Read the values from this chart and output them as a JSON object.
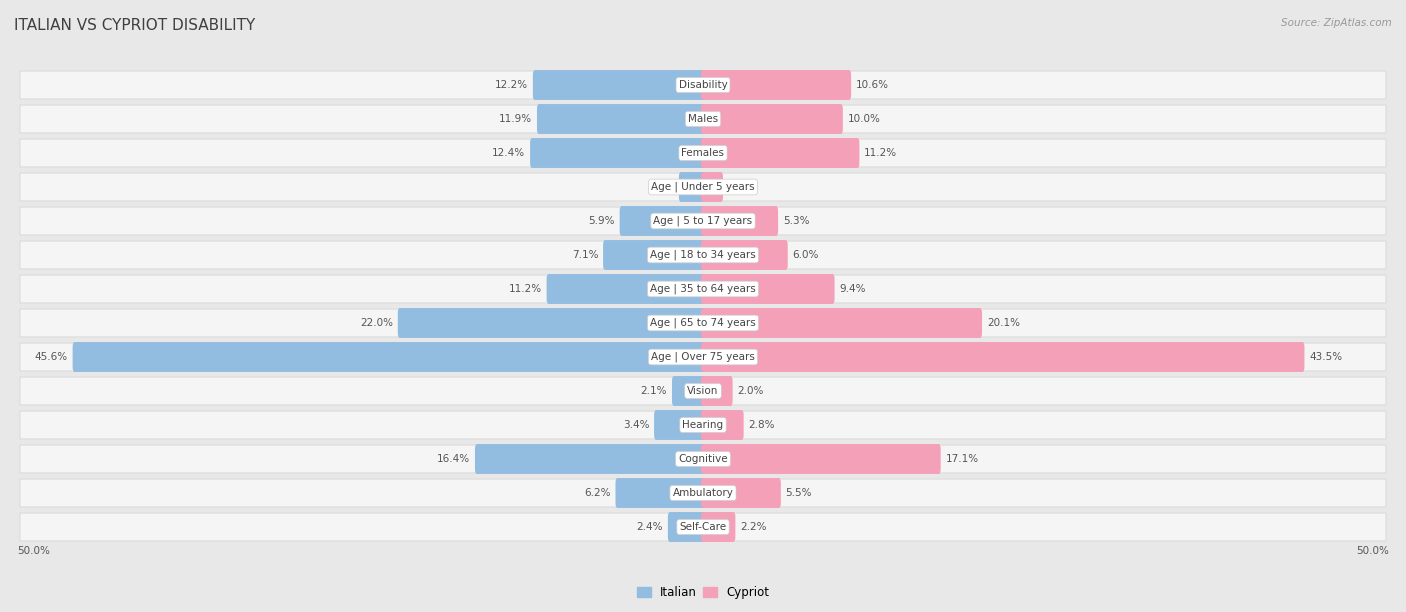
{
  "title": "ITALIAN VS CYPRIOT DISABILITY",
  "source": "Source: ZipAtlas.com",
  "categories": [
    "Disability",
    "Males",
    "Females",
    "Age | Under 5 years",
    "Age | 5 to 17 years",
    "Age | 18 to 34 years",
    "Age | 35 to 64 years",
    "Age | 65 to 74 years",
    "Age | Over 75 years",
    "Vision",
    "Hearing",
    "Cognitive",
    "Ambulatory",
    "Self-Care"
  ],
  "italian_values": [
    12.2,
    11.9,
    12.4,
    1.6,
    5.9,
    7.1,
    11.2,
    22.0,
    45.6,
    2.1,
    3.4,
    16.4,
    6.2,
    2.4
  ],
  "cypriot_values": [
    10.6,
    10.0,
    11.2,
    1.3,
    5.3,
    6.0,
    9.4,
    20.1,
    43.5,
    2.0,
    2.8,
    17.1,
    5.5,
    2.2
  ],
  "italian_color": "#92bde0",
  "cypriot_color": "#f4a0b8",
  "bar_height": 0.58,
  "axis_limit": 50.0,
  "bg_color": "#e8e8e8",
  "row_bg_color": "#f5f5f5",
  "row_border_color": "#d0d0d0",
  "title_fontsize": 11,
  "label_fontsize": 7.5,
  "value_fontsize": 7.5,
  "legend_fontsize": 8.5,
  "title_color": "#404040",
  "value_color": "#555555",
  "label_color": "#444444",
  "source_color": "#999999"
}
